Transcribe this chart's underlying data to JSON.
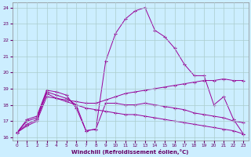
{
  "xlabel": "Windchill (Refroidissement éolien,°C)",
  "ylabel": "",
  "background_color": "#cceeff",
  "grid_color": "#aacccc",
  "line_color": "#990099",
  "xlim": [
    -0.5,
    23.5
  ],
  "ylim": [
    15.8,
    24.3
  ],
  "yticks": [
    16,
    17,
    18,
    19,
    20,
    21,
    22,
    23,
    24
  ],
  "xticks": [
    0,
    1,
    2,
    3,
    4,
    5,
    6,
    7,
    8,
    9,
    10,
    11,
    12,
    13,
    14,
    15,
    16,
    17,
    18,
    19,
    20,
    21,
    22,
    23
  ],
  "series": [
    {
      "x": [
        0,
        1,
        2,
        3,
        4,
        5,
        6,
        7,
        8,
        9,
        10,
        11,
        12,
        13,
        14,
        15,
        16,
        17,
        18,
        19,
        20,
        21,
        22,
        23
      ],
      "y": [
        16.3,
        17.1,
        17.3,
        18.9,
        18.8,
        18.6,
        17.8,
        16.4,
        16.5,
        20.7,
        22.4,
        23.3,
        23.8,
        24.0,
        22.6,
        22.2,
        21.5,
        20.5,
        19.8,
        19.8,
        18.0,
        18.5,
        17.1,
        16.2
      ]
    },
    {
      "x": [
        0,
        1,
        2,
        3,
        4,
        5,
        6,
        7,
        8,
        9,
        10,
        11,
        12,
        13,
        14,
        15,
        16,
        17,
        18,
        19,
        20,
        21,
        22,
        23
      ],
      "y": [
        16.3,
        17.0,
        17.2,
        18.8,
        18.6,
        18.4,
        18.0,
        16.4,
        16.5,
        18.1,
        18.1,
        18.0,
        18.0,
        18.1,
        18.0,
        17.9,
        17.8,
        17.7,
        17.5,
        17.4,
        17.3,
        17.2,
        17.0,
        16.9
      ]
    },
    {
      "x": [
        0,
        1,
        2,
        3,
        4,
        5,
        6,
        7,
        8,
        9,
        10,
        11,
        12,
        13,
        14,
        15,
        16,
        17,
        18,
        19,
        20,
        21,
        22,
        23
      ],
      "y": [
        16.3,
        16.7,
        17.0,
        18.5,
        18.4,
        18.3,
        18.2,
        18.1,
        18.1,
        18.3,
        18.5,
        18.7,
        18.8,
        18.9,
        19.0,
        19.1,
        19.2,
        19.3,
        19.4,
        19.5,
        19.5,
        19.6,
        19.5,
        19.5
      ]
    },
    {
      "x": [
        0,
        1,
        2,
        3,
        4,
        5,
        6,
        7,
        8,
        9,
        10,
        11,
        12,
        13,
        14,
        15,
        16,
        17,
        18,
        19,
        20,
        21,
        22,
        23
      ],
      "y": [
        16.3,
        16.8,
        17.1,
        18.7,
        18.4,
        18.2,
        18.0,
        17.8,
        17.7,
        17.6,
        17.5,
        17.4,
        17.4,
        17.3,
        17.2,
        17.1,
        17.0,
        16.9,
        16.8,
        16.7,
        16.6,
        16.5,
        16.4,
        16.2
      ]
    }
  ]
}
